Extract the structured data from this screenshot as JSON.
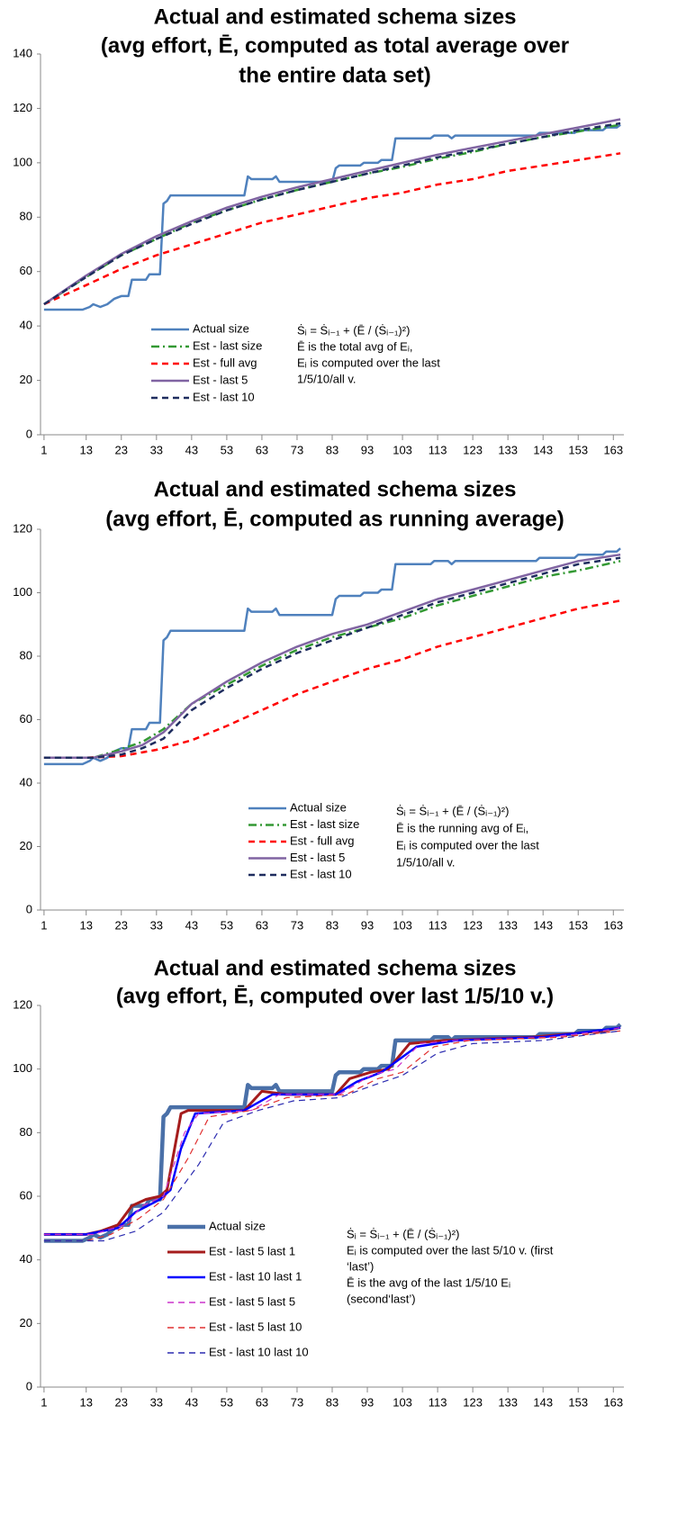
{
  "chart_data": [
    {
      "type": "line",
      "title": [
        "Actual and estimated schema sizes",
        "(avg effort, Ē, computed as total average over",
        "the entire data set)"
      ],
      "xlim": [
        0,
        166
      ],
      "ylim": [
        0,
        140
      ],
      "xticks": [
        1,
        13,
        23,
        33,
        43,
        53,
        63,
        73,
        83,
        93,
        103,
        113,
        123,
        133,
        143,
        153,
        163
      ],
      "yticks": [
        0,
        20,
        40,
        60,
        80,
        100,
        120,
        140
      ],
      "annotation": [
        "Ṡᵢ = Ṡᵢ₋₁ + (Ē / (Ṡᵢ₋₁)²)",
        "Ē is the total avg of Eᵢ,",
        "Eᵢ is computed over the last",
        "1/5/10/all v."
      ],
      "series": [
        {
          "name": "Actual size",
          "color": "#4f81bd",
          "line_style": "solid",
          "x": [
            1,
            12,
            14,
            15,
            17,
            19,
            21,
            23,
            25,
            26,
            30,
            31,
            34,
            35,
            36,
            37,
            58,
            59,
            60,
            66,
            67,
            68,
            83,
            84,
            85,
            91,
            92,
            96,
            97,
            100,
            101,
            111,
            112,
            116,
            117,
            118,
            141,
            142,
            152,
            153,
            160,
            161,
            164,
            165
          ],
          "values": [
            46,
            46,
            47,
            48,
            47,
            48,
            50,
            51,
            51,
            57,
            57,
            59,
            59,
            85,
            86,
            88,
            88,
            95,
            94,
            94,
            95,
            93,
            93,
            98,
            99,
            99,
            100,
            100,
            101,
            101,
            109,
            109,
            110,
            110,
            109,
            110,
            110,
            111,
            111,
            112,
            112,
            113,
            113,
            114
          ]
        },
        {
          "name": "Est - last size",
          "color": "#339933",
          "line_style": "dash-dot",
          "x": [
            1,
            13,
            23,
            33,
            43,
            53,
            63,
            73,
            83,
            93,
            103,
            113,
            123,
            133,
            143,
            153,
            165
          ],
          "values": [
            48,
            58,
            66,
            72,
            78,
            82.5,
            86.5,
            90,
            93,
            96,
            98.5,
            101.5,
            104,
            107,
            109.5,
            111.5,
            114
          ]
        },
        {
          "name": "Est - full avg",
          "color": "#ff0000",
          "line_style": "dash",
          "x": [
            1,
            13,
            23,
            33,
            43,
            53,
            63,
            73,
            83,
            93,
            103,
            113,
            123,
            133,
            143,
            153,
            165
          ],
          "values": [
            48,
            55,
            61,
            66,
            70,
            74,
            78,
            81,
            84,
            87,
            89,
            92,
            94,
            97,
            99,
            101,
            103.5
          ]
        },
        {
          "name": "Est - last 5",
          "color": "#8064a2",
          "line_style": "solid",
          "x": [
            1,
            13,
            23,
            33,
            43,
            53,
            63,
            73,
            83,
            93,
            103,
            113,
            123,
            133,
            143,
            153,
            165
          ],
          "values": [
            48,
            58.5,
            66.5,
            73,
            78.5,
            83.5,
            87.5,
            91,
            94,
            97,
            100,
            103,
            105.5,
            108,
            110.5,
            113,
            116
          ]
        },
        {
          "name": "Est - last 10",
          "color": "#1f2d5f",
          "line_style": "dash",
          "x": [
            1,
            13,
            23,
            33,
            43,
            53,
            63,
            73,
            83,
            93,
            103,
            113,
            123,
            133,
            143,
            153,
            165
          ],
          "values": [
            48,
            58,
            66,
            72,
            77.5,
            82.5,
            86.5,
            90,
            93,
            96,
            99,
            102,
            104.5,
            107,
            109.5,
            112,
            114.5
          ]
        }
      ]
    },
    {
      "type": "line",
      "title": [
        "Actual and estimated schema sizes",
        "(avg effort, Ē, computed as running average)"
      ],
      "xlim": [
        0,
        166
      ],
      "ylim": [
        0,
        120
      ],
      "xticks": [
        1,
        13,
        23,
        33,
        43,
        53,
        63,
        73,
        83,
        93,
        103,
        113,
        123,
        133,
        143,
        153,
        163
      ],
      "yticks": [
        0,
        20,
        40,
        60,
        80,
        100,
        120
      ],
      "annotation": [
        "Ṡᵢ = Ṡᵢ₋₁ + (Ē / (Ṡᵢ₋₁)²)",
        "Ē is the running avg of Eᵢ,",
        "Eᵢ is computed over the last",
        "1/5/10/all v."
      ],
      "series": [
        {
          "name": "Actual size",
          "color": "#4f81bd",
          "line_style": "solid",
          "x": [
            1,
            12,
            14,
            15,
            17,
            19,
            21,
            23,
            25,
            26,
            30,
            31,
            34,
            35,
            36,
            37,
            58,
            59,
            60,
            66,
            67,
            68,
            83,
            84,
            85,
            91,
            92,
            96,
            97,
            100,
            101,
            111,
            112,
            116,
            117,
            118,
            141,
            142,
            152,
            153,
            160,
            161,
            164,
            165
          ],
          "values": [
            46,
            46,
            47,
            48,
            47,
            48,
            50,
            51,
            51,
            57,
            57,
            59,
            59,
            85,
            86,
            88,
            88,
            95,
            94,
            94,
            95,
            93,
            93,
            98,
            99,
            99,
            100,
            100,
            101,
            101,
            109,
            109,
            110,
            110,
            109,
            110,
            110,
            111,
            111,
            112,
            112,
            113,
            113,
            114
          ]
        },
        {
          "name": "Est - last size",
          "color": "#339933",
          "line_style": "dash-dot",
          "x": [
            1,
            15,
            21,
            29,
            35,
            43,
            53,
            63,
            73,
            83,
            93,
            103,
            113,
            123,
            133,
            143,
            153,
            165
          ],
          "values": [
            48,
            48,
            50,
            53,
            57,
            65,
            71,
            77,
            82,
            86,
            89,
            92,
            96,
            99,
            102,
            105,
            107,
            110
          ]
        },
        {
          "name": "Est - full avg",
          "color": "#ff0000",
          "line_style": "dash",
          "x": [
            1,
            13,
            23,
            33,
            43,
            53,
            63,
            73,
            83,
            93,
            103,
            113,
            123,
            133,
            143,
            153,
            165
          ],
          "values": [
            48,
            48,
            48.5,
            50.5,
            53.5,
            58,
            63,
            68,
            72,
            76,
            79,
            83,
            86,
            89,
            92,
            95,
            97.5
          ]
        },
        {
          "name": "Est - last 5",
          "color": "#8064a2",
          "line_style": "solid",
          "x": [
            1,
            15,
            23,
            29,
            35,
            43,
            53,
            63,
            73,
            83,
            93,
            103,
            113,
            123,
            133,
            143,
            153,
            165
          ],
          "values": [
            48,
            48,
            50,
            52,
            56,
            65,
            72,
            78,
            83,
            87,
            90,
            94,
            98,
            101,
            104,
            107,
            110,
            112
          ]
        },
        {
          "name": "Est - last 10",
          "color": "#1f2d5f",
          "line_style": "dash",
          "x": [
            1,
            15,
            23,
            29,
            35,
            43,
            53,
            63,
            73,
            83,
            93,
            103,
            113,
            123,
            133,
            143,
            153,
            165
          ],
          "values": [
            48,
            48,
            49,
            51,
            54,
            63,
            70,
            76,
            81,
            85,
            89,
            93,
            97,
            100,
            103,
            106,
            109,
            111
          ]
        }
      ]
    },
    {
      "type": "line",
      "title": [
        "Actual and estimated schema sizes",
        "(avg effort, Ē, computed over last 1/5/10 v.)"
      ],
      "xlim": [
        0,
        166
      ],
      "ylim": [
        0,
        120
      ],
      "xticks": [
        1,
        13,
        23,
        33,
        43,
        53,
        63,
        73,
        83,
        93,
        103,
        113,
        123,
        133,
        143,
        153,
        163
      ],
      "yticks": [
        0,
        20,
        40,
        60,
        80,
        100,
        120
      ],
      "annotation": [
        "Ṡᵢ = Ṡᵢ₋₁ + (Ē / (Ṡᵢ₋₁)²)",
        "Eᵢ is computed over the last 5/10  v. (first",
        "‘last’)",
        "Ē is the avg of the last 1/5/10 Eᵢ",
        "(second‘last’)"
      ],
      "series": [
        {
          "name": "Actual size",
          "color": "#4a70a8",
          "line_style": "solid",
          "x": [
            1,
            12,
            14,
            15,
            17,
            19,
            21,
            23,
            25,
            26,
            30,
            31,
            34,
            35,
            36,
            37,
            58,
            59,
            60,
            66,
            67,
            68,
            83,
            84,
            85,
            91,
            92,
            96,
            97,
            100,
            101,
            111,
            112,
            116,
            117,
            118,
            141,
            142,
            152,
            153,
            160,
            161,
            164,
            165
          ],
          "values": [
            46,
            46,
            47,
            48,
            47,
            48,
            50,
            51,
            51,
            57,
            57,
            59,
            59,
            85,
            86,
            88,
            88,
            95,
            94,
            94,
            95,
            93,
            93,
            98,
            99,
            99,
            100,
            100,
            101,
            101,
            109,
            109,
            110,
            110,
            109,
            110,
            110,
            111,
            111,
            112,
            112,
            113,
            113,
            114
          ]
        },
        {
          "name": "Est - last 5 last 1",
          "color": "#a51c1c",
          "line_style": "solid",
          "x": [
            1,
            13,
            17,
            22,
            26,
            30,
            34,
            36,
            40,
            42,
            58,
            63,
            70,
            84,
            88,
            94,
            99,
            105,
            115,
            140,
            150,
            160,
            165
          ],
          "values": [
            48,
            48,
            49,
            51,
            57,
            59,
            60,
            62,
            86,
            87,
            87,
            93,
            92,
            92,
            97,
            99,
            100,
            108,
            109,
            110,
            111,
            112,
            113
          ]
        },
        {
          "name": "Est - last 10 last 1",
          "color": "#0000ff",
          "line_style": "solid",
          "x": [
            1,
            13,
            22,
            27,
            34,
            37,
            40,
            44,
            58,
            66,
            84,
            90,
            97,
            107,
            118,
            143,
            158,
            165
          ],
          "values": [
            48,
            48,
            50,
            55,
            59,
            62,
            75,
            86,
            87,
            92,
            92,
            96,
            99,
            107,
            109,
            110,
            112,
            113
          ]
        },
        {
          "name": "Est - last 5 last 5",
          "color": "#cc33cc",
          "line_style": "dash",
          "x": [
            1,
            15,
            24,
            29,
            35,
            41,
            45,
            60,
            68,
            85,
            94,
            101,
            108,
            118,
            145,
            160,
            165
          ],
          "values": [
            48,
            48,
            51,
            57,
            60,
            80,
            86,
            87,
            92,
            92,
            98,
            100,
            108,
            109,
            110,
            112,
            113
          ]
        },
        {
          "name": "Est - last 5 last 10",
          "color": "#e03030",
          "line_style": "dash",
          "x": [
            1,
            13,
            20,
            28,
            35,
            42,
            48,
            60,
            70,
            87,
            96,
            103,
            112,
            122,
            148,
            165
          ],
          "values": [
            46,
            46,
            48,
            53,
            59,
            72,
            85,
            87,
            91,
            92,
            97,
            99,
            107,
            109,
            110,
            112
          ]
        },
        {
          "name": "Est - last 10 last 10",
          "color": "#2b2bb0",
          "line_style": "dash",
          "x": [
            1,
            18,
            27,
            35,
            45,
            52,
            62,
            72,
            85,
            95,
            103,
            113,
            123,
            143,
            165
          ],
          "values": [
            46,
            46,
            49,
            55,
            70,
            83,
            87,
            90,
            91,
            95,
            98,
            105,
            108,
            109,
            112
          ]
        }
      ]
    }
  ]
}
